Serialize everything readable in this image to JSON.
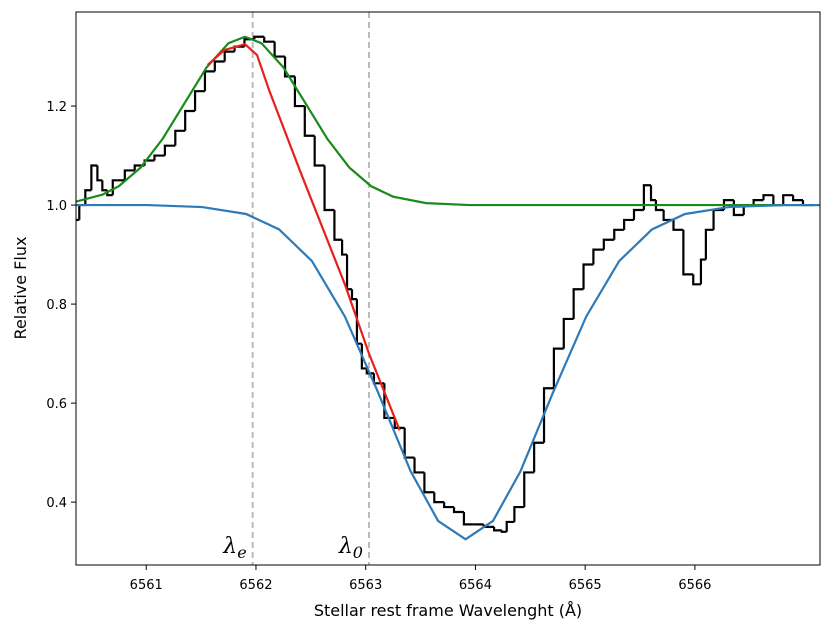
{
  "chart_data": {
    "type": "line",
    "xlabel": "Stellar rest frame Wavelenght (Å)",
    "ylabel": "Relative Flux",
    "xlim": [
      6560.36,
      6567.14
    ],
    "ylim": [
      0.273,
      1.39
    ],
    "xticks": [
      6561,
      6562,
      6563,
      6564,
      6565,
      6566
    ],
    "yticks": [
      0.4,
      0.6,
      0.8,
      {
        "value": 1,
        "label": "1.0"
      },
      1.2
    ],
    "vlines": [
      {
        "x": 6561.97,
        "symbol": "λ",
        "subscript": "e",
        "color": "#bbbbbb"
      },
      {
        "x": 6563.03,
        "symbol": "λ",
        "subscript": "0",
        "color": "#bbbbbb"
      }
    ],
    "series": [
      {
        "color": "#000000",
        "style": "step",
        "x": [
          6560.36,
          6560.42,
          6560.47,
          6560.53,
          6560.58,
          6560.62,
          6560.67,
          6560.72,
          6560.76,
          6560.85,
          6560.94,
          6561.03,
          6561.12,
          6561.22,
          6561.31,
          6561.4,
          6561.49,
          6561.58,
          6561.67,
          6561.76,
          6561.85,
          6561.94,
          6562.03,
          6562.12,
          6562.22,
          6562.31,
          6562.4,
          6562.49,
          6562.58,
          6562.67,
          6562.76,
          6562.81,
          6562.85,
          6562.9,
          6562.94,
          6562.99,
          6563.03,
          6563.12,
          6563.22,
          6563.31,
          6563.4,
          6563.49,
          6563.58,
          6563.67,
          6563.76,
          6563.85,
          6563.94,
          6564.03,
          6564.12,
          6564.22,
          6564.26,
          6564.31,
          6564.4,
          6564.49,
          6564.58,
          6564.67,
          6564.76,
          6564.85,
          6564.94,
          6565.03,
          6565.12,
          6565.22,
          6565.31,
          6565.4,
          6565.49,
          6565.58,
          6565.62,
          6565.67,
          6565.76,
          6565.85,
          6565.94,
          6566.03,
          6566.08,
          6566.12,
          6566.22,
          6566.31,
          6566.4,
          6566.49,
          6566.58,
          6566.67,
          6566.76,
          6566.85,
          6566.94,
          6567.03,
          6567.08
        ],
        "values": [
          0.97,
          1.0,
          1.03,
          1.08,
          1.05,
          1.03,
          1.02,
          1.05,
          1.05,
          1.07,
          1.08,
          1.09,
          1.1,
          1.12,
          1.15,
          1.19,
          1.23,
          1.27,
          1.29,
          1.31,
          1.32,
          1.335,
          1.34,
          1.33,
          1.3,
          1.26,
          1.2,
          1.14,
          1.08,
          0.99,
          0.93,
          0.9,
          0.83,
          0.81,
          0.72,
          0.67,
          0.66,
          0.64,
          0.57,
          0.55,
          0.49,
          0.46,
          0.42,
          0.4,
          0.39,
          0.38,
          0.355,
          0.355,
          0.35,
          0.343,
          0.34,
          0.36,
          0.39,
          0.46,
          0.52,
          0.63,
          0.71,
          0.77,
          0.83,
          0.88,
          0.91,
          0.93,
          0.95,
          0.97,
          0.99,
          1.04,
          1.01,
          0.99,
          0.97,
          0.95,
          0.86,
          0.84,
          0.89,
          0.95,
          0.99,
          1.01,
          0.98,
          1.0,
          1.01,
          1.02,
          1.0,
          1.02,
          1.01,
          1.0,
          1.0
        ]
      },
      {
        "color": "#1a8a1a",
        "style": "line",
        "x": [
          6560.36,
          6560.6,
          6560.75,
          6560.95,
          6561.15,
          6561.35,
          6561.55,
          6561.75,
          6561.9,
          6562.05,
          6562.25,
          6562.45,
          6562.65,
          6562.85,
          6563.05,
          6563.25,
          6563.55,
          6563.95,
          6567.14
        ],
        "values": [
          1.007,
          1.021,
          1.038,
          1.076,
          1.134,
          1.206,
          1.278,
          1.327,
          1.34,
          1.327,
          1.278,
          1.206,
          1.134,
          1.076,
          1.038,
          1.017,
          1.004,
          1.0,
          1.0
        ]
      },
      {
        "color": "#2e7ab8",
        "style": "line",
        "x": [
          6560.36,
          6561.01,
          6561.51,
          6561.91,
          6562.21,
          6562.51,
          6562.81,
          6563.11,
          6563.41,
          6563.66,
          6563.91,
          6564.16,
          6564.41,
          6564.71,
          6565.01,
          6565.31,
          6565.61,
          6565.91,
          6566.31,
          6566.81,
          6567.14
        ],
        "values": [
          1.0,
          1.0,
          0.996,
          0.982,
          0.951,
          0.887,
          0.775,
          0.623,
          0.462,
          0.362,
          0.325,
          0.362,
          0.462,
          0.623,
          0.775,
          0.887,
          0.951,
          0.982,
          0.996,
          1.0,
          1.0
        ]
      },
      {
        "color": "#e8201a",
        "style": "line",
        "x": [
          6561.56,
          6561.71,
          6561.9,
          6562.01,
          6562.12,
          6562.4,
          6562.81,
          6563.03,
          6563.31
        ],
        "values": [
          1.283,
          1.313,
          1.325,
          1.303,
          1.232,
          1.07,
          0.84,
          0.7,
          0.545
        ]
      }
    ]
  }
}
